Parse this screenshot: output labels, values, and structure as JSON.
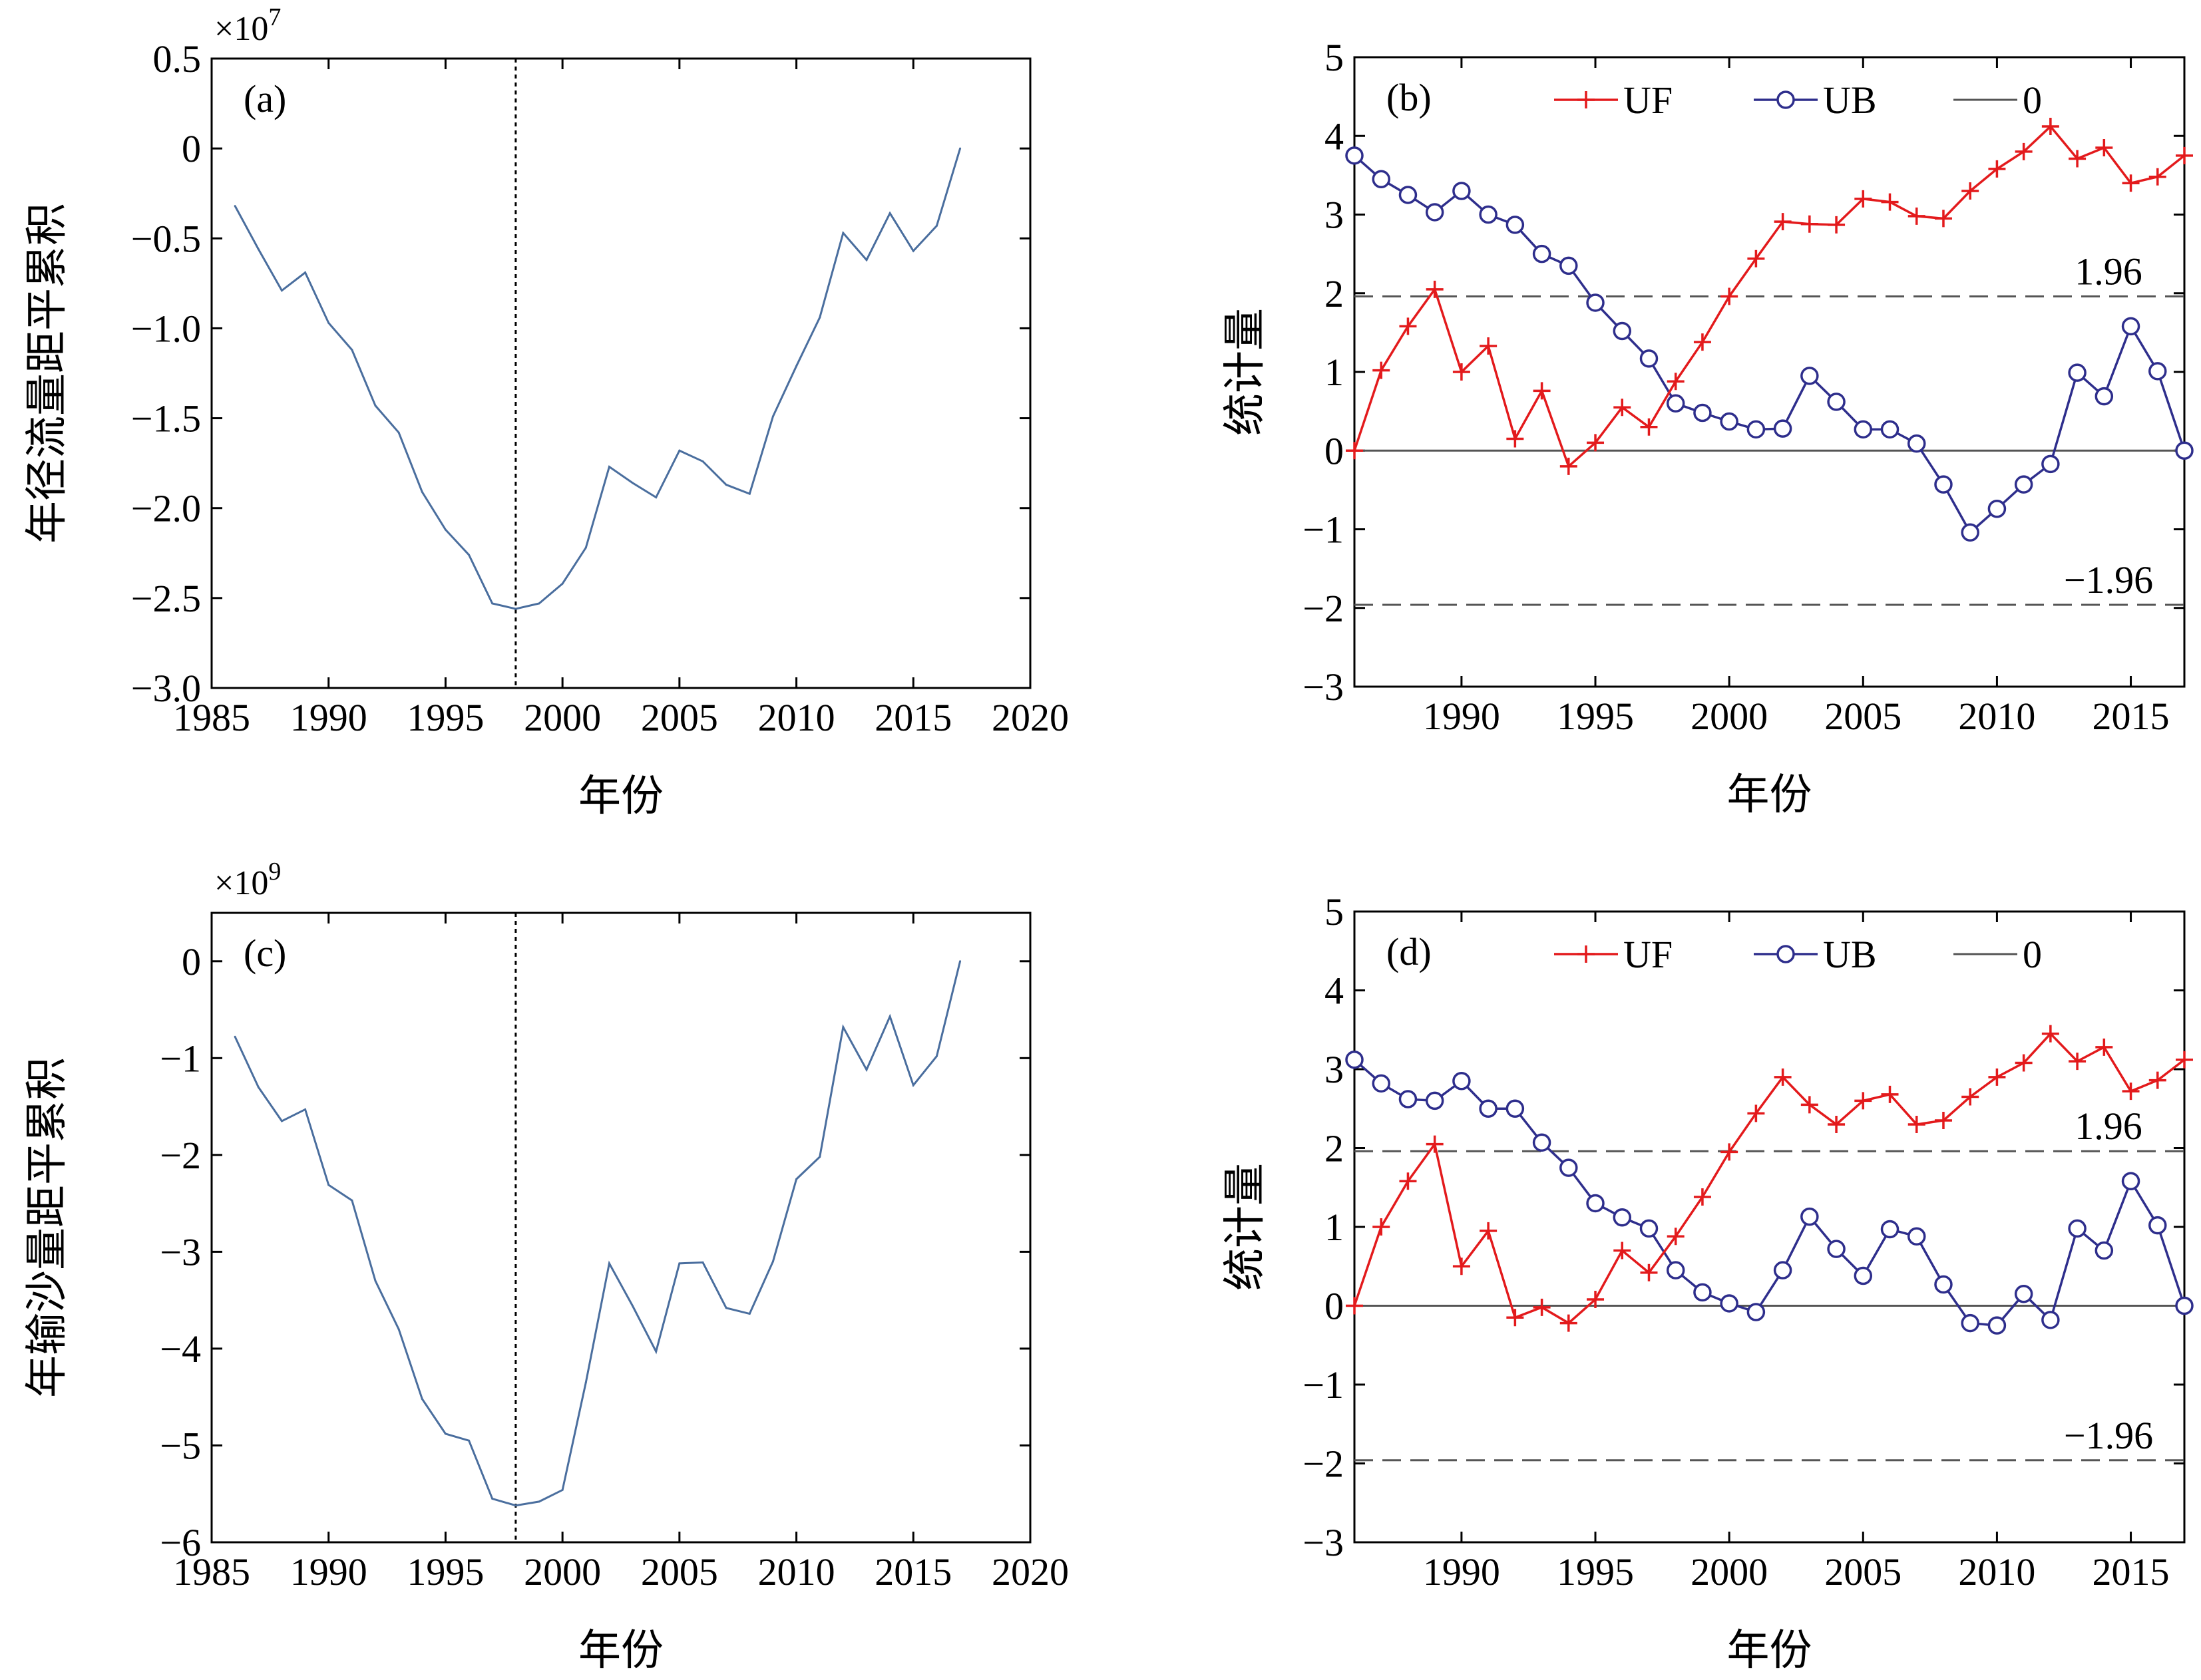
{
  "colors": {
    "line_ac": "#4a6e9e",
    "uf": "#e31a1c",
    "ub": "#2e2e8c",
    "zero": "#555555",
    "dashed": "#555555",
    "vline": "#000000"
  },
  "chart_data": [
    {
      "id": "a",
      "type": "line",
      "panel_label": "(a)",
      "xlabel": "年份",
      "ylabel": "年径流量距平累积",
      "exponent_base": "×10",
      "exponent_power": "7",
      "xlim": [
        1985,
        2020
      ],
      "ylim": [
        -3.0,
        0.5
      ],
      "xticks": [
        1985,
        1990,
        1995,
        2000,
        2005,
        2010,
        2015,
        2020
      ],
      "xtick_labels": [
        "1985",
        "1990",
        "1995",
        "2000",
        "2005",
        "2010",
        "2015",
        "2020"
      ],
      "yticks": [
        0.5,
        0,
        -0.5,
        -1.0,
        -1.5,
        -2.0,
        -2.5,
        -3.0
      ],
      "ytick_labels": [
        "0.5",
        "0",
        "−0.5",
        "−1.0",
        "−1.5",
        "−2.0",
        "−2.5",
        "−3.0"
      ],
      "vline_x": 1998,
      "x": [
        1986,
        1987,
        1988,
        1989,
        1990,
        1991,
        1992,
        1993,
        1994,
        1995,
        1996,
        1997,
        1998,
        1999,
        2000,
        2001,
        2002,
        2003,
        2004,
        2005,
        2006,
        2007,
        2008,
        2009,
        2010,
        2011,
        2012,
        2013,
        2014,
        2015,
        2016,
        2017
      ],
      "values": [
        -0.32,
        -0.56,
        -0.79,
        -0.69,
        -0.97,
        -1.12,
        -1.43,
        -1.58,
        -1.91,
        -2.12,
        -2.26,
        -2.53,
        -2.56,
        -2.53,
        -2.42,
        -2.22,
        -1.77,
        -1.86,
        -1.94,
        -1.68,
        -1.74,
        -1.87,
        -1.92,
        -1.49,
        -1.21,
        -0.94,
        -0.47,
        -0.62,
        -0.36,
        -0.57,
        -0.43,
        0.0
      ]
    },
    {
      "id": "b",
      "type": "line",
      "panel_label": "(b)",
      "xlabel": "年份",
      "ylabel": "统计量",
      "xlim": [
        1986,
        2017
      ],
      "ylim": [
        -3,
        5
      ],
      "xticks": [
        1990,
        1995,
        2000,
        2005,
        2010,
        2015
      ],
      "xtick_labels": [
        "1990",
        "1995",
        "2000",
        "2005",
        "2010",
        "2015"
      ],
      "yticks": [
        5,
        4,
        3,
        2,
        1,
        0,
        -1,
        -2,
        -3
      ],
      "ytick_labels": [
        "5",
        "4",
        "3",
        "2",
        "1",
        "0",
        "−1",
        "−2",
        "−3"
      ],
      "legend": [
        "UF",
        "UB",
        "0"
      ],
      "thresholds": [
        1.96,
        -1.96
      ],
      "threshold_labels": [
        "1.96",
        "−1.96"
      ],
      "x": [
        1986,
        1987,
        1988,
        1989,
        1990,
        1991,
        1992,
        1993,
        1994,
        1995,
        1996,
        1997,
        1998,
        1999,
        2000,
        2001,
        2002,
        2003,
        2004,
        2005,
        2006,
        2007,
        2008,
        2009,
        2010,
        2011,
        2012,
        2013,
        2014,
        2015,
        2016,
        2017
      ],
      "series": [
        {
          "name": "UF",
          "values": [
            0.0,
            1.02,
            1.58,
            2.05,
            1.0,
            1.33,
            0.15,
            0.76,
            -0.2,
            0.1,
            0.55,
            0.3,
            0.88,
            1.38,
            1.96,
            2.44,
            2.91,
            2.88,
            2.87,
            3.2,
            3.16,
            2.98,
            2.95,
            3.3,
            3.58,
            3.8,
            4.12,
            3.71,
            3.85,
            3.4,
            3.48,
            3.75
          ]
        },
        {
          "name": "UB",
          "values": [
            3.75,
            3.45,
            3.25,
            3.03,
            3.3,
            3.0,
            2.87,
            2.5,
            2.35,
            1.88,
            1.52,
            1.17,
            0.6,
            0.48,
            0.37,
            0.27,
            0.28,
            0.95,
            0.62,
            0.27,
            0.27,
            0.09,
            -0.43,
            -1.04,
            -0.74,
            -0.43,
            -0.17,
            0.99,
            0.69,
            1.58,
            1.01,
            0.0
          ]
        }
      ]
    },
    {
      "id": "c",
      "type": "line",
      "panel_label": "(c)",
      "xlabel": "年份",
      "ylabel": "年输沙量距平累积",
      "exponent_base": "×10",
      "exponent_power": "9",
      "xlim": [
        1985,
        2020
      ],
      "ylim": [
        -6,
        0.5
      ],
      "xticks": [
        1985,
        1990,
        1995,
        2000,
        2005,
        2010,
        2015,
        2020
      ],
      "xtick_labels": [
        "1985",
        "1990",
        "1995",
        "2000",
        "2005",
        "2010",
        "2015",
        "2020"
      ],
      "yticks": [
        0,
        -1,
        -2,
        -3,
        -4,
        -5,
        -6
      ],
      "ytick_labels": [
        "0",
        "−1",
        "−2",
        "−3",
        "−4",
        "−5",
        "−6"
      ],
      "vline_x": 1998,
      "x": [
        1986,
        1987,
        1988,
        1989,
        1990,
        1991,
        1992,
        1993,
        1994,
        1995,
        1996,
        1997,
        1998,
        1999,
        2000,
        2001,
        2002,
        2003,
        2004,
        2005,
        2006,
        2007,
        2008,
        2009,
        2010,
        2011,
        2012,
        2013,
        2014,
        2015,
        2016,
        2017
      ],
      "values": [
        -0.78,
        -1.3,
        -1.65,
        -1.53,
        -2.31,
        -2.47,
        -3.3,
        -3.8,
        -4.52,
        -4.88,
        -4.95,
        -5.55,
        -5.62,
        -5.58,
        -5.46,
        -4.35,
        -3.12,
        -3.56,
        -4.03,
        -3.12,
        -3.11,
        -3.58,
        -3.64,
        -3.1,
        -2.25,
        -2.02,
        -0.68,
        -1.12,
        -0.57,
        -1.28,
        -0.98,
        0.0
      ]
    },
    {
      "id": "d",
      "type": "line",
      "panel_label": "(d)",
      "xlabel": "年份",
      "ylabel": "统计量",
      "xlim": [
        1986,
        2017
      ],
      "ylim": [
        -3,
        5
      ],
      "xticks": [
        1990,
        1995,
        2000,
        2005,
        2010,
        2015
      ],
      "xtick_labels": [
        "1990",
        "1995",
        "2000",
        "2005",
        "2010",
        "2015"
      ],
      "yticks": [
        5,
        4,
        3,
        2,
        1,
        0,
        -1,
        -2,
        -3
      ],
      "ytick_labels": [
        "5",
        "4",
        "3",
        "2",
        "1",
        "0",
        "−1",
        "−2",
        "−3"
      ],
      "legend": [
        "UF",
        "UB",
        "0"
      ],
      "thresholds": [
        1.96,
        -1.96
      ],
      "threshold_labels": [
        "1.96",
        "−1.96"
      ],
      "x": [
        1986,
        1987,
        1988,
        1989,
        1990,
        1991,
        1992,
        1993,
        1994,
        1995,
        1996,
        1997,
        1998,
        1999,
        2000,
        2001,
        2002,
        2003,
        2004,
        2005,
        2006,
        2007,
        2008,
        2009,
        2010,
        2011,
        2012,
        2013,
        2014,
        2015,
        2016,
        2017
      ],
      "series": [
        {
          "name": "UF",
          "values": [
            0.0,
            1.0,
            1.58,
            2.05,
            0.5,
            0.95,
            -0.15,
            -0.02,
            -0.22,
            0.08,
            0.7,
            0.42,
            0.88,
            1.38,
            1.95,
            2.44,
            2.9,
            2.55,
            2.3,
            2.6,
            2.68,
            2.3,
            2.35,
            2.65,
            2.9,
            3.08,
            3.45,
            3.1,
            3.28,
            2.72,
            2.86,
            3.12
          ]
        },
        {
          "name": "UB",
          "values": [
            3.12,
            2.82,
            2.62,
            2.6,
            2.85,
            2.5,
            2.5,
            2.07,
            1.75,
            1.3,
            1.12,
            0.98,
            0.45,
            0.17,
            0.03,
            -0.08,
            0.45,
            1.13,
            0.72,
            0.38,
            0.97,
            0.88,
            0.27,
            -0.22,
            -0.25,
            0.15,
            -0.18,
            0.98,
            0.7,
            1.58,
            1.02,
            0.0
          ]
        }
      ]
    }
  ]
}
